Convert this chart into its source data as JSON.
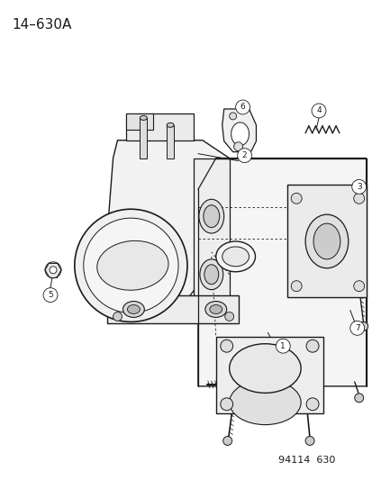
{
  "title": "14–630A",
  "footer": "94114  630",
  "background_color": "#ffffff",
  "line_color": "#1a1a1a",
  "title_fontsize": 11,
  "footer_fontsize": 8,
  "fig_width": 4.14,
  "fig_height": 5.33,
  "dpi": 100
}
